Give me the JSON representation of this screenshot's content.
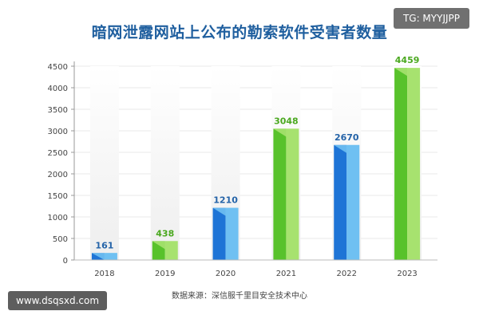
{
  "header": {
    "badge": "TG: MYYJJPP"
  },
  "footer": {
    "source": "数据来源：深信服千里目安全技术中心",
    "watermark": "www.dsqsxd.com"
  },
  "chart_data": {
    "type": "bar",
    "title": "暗网泄露网站上公布的勒索软件受害者数量",
    "categories": [
      "2018",
      "2019",
      "2020",
      "2021",
      "2022",
      "2023"
    ],
    "values": [
      161,
      438,
      1210,
      3048,
      2670,
      4459
    ],
    "xlabel": "",
    "ylabel": "",
    "ylim": [
      0,
      4500
    ],
    "yticks": [
      0,
      500,
      1000,
      1500,
      2000,
      2500,
      3000,
      3500,
      4000,
      4500
    ],
    "grid": true,
    "legend": "none",
    "colors": {
      "blue": "#1e74d6",
      "blue_light": "#6fc0f2",
      "green": "#58c22b",
      "green_light": "#a7e26f",
      "label_blue": "#2463a8",
      "label_green": "#4aa81f"
    },
    "bar_colors": [
      "blue",
      "green",
      "blue",
      "green",
      "blue",
      "green"
    ]
  }
}
